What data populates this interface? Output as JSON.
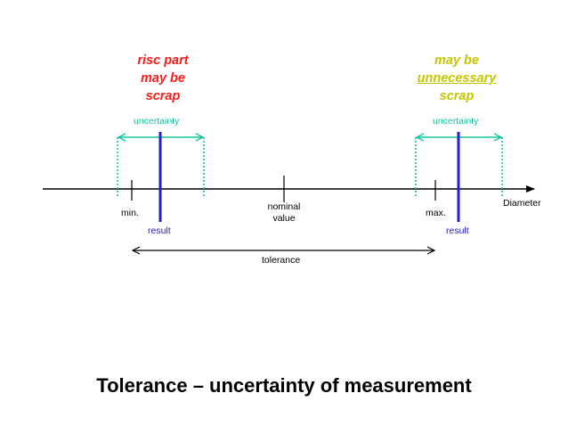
{
  "left_header": {
    "lines": [
      "risc part",
      "may be",
      "scrap"
    ],
    "color": "#ff1a1a"
  },
  "right_header": {
    "lines": [
      "may be",
      "unnecessary",
      "scrap"
    ],
    "color": "#c6c600"
  },
  "labels": {
    "uncertainty_left": "uncertainty",
    "uncertainty_right": "uncertainty",
    "min": "min.",
    "max": "max.",
    "nominal_line1": "nominal",
    "nominal_line2": "value",
    "result_left": "result",
    "result_right": "result",
    "axis": "Diameter",
    "tolerance": "tolerance"
  },
  "title": "Tolerance – uncertainty of measurement",
  "colors": {
    "uncertainty": "#10c4a0",
    "result": "#2020d0",
    "axis": "#000000"
  }
}
